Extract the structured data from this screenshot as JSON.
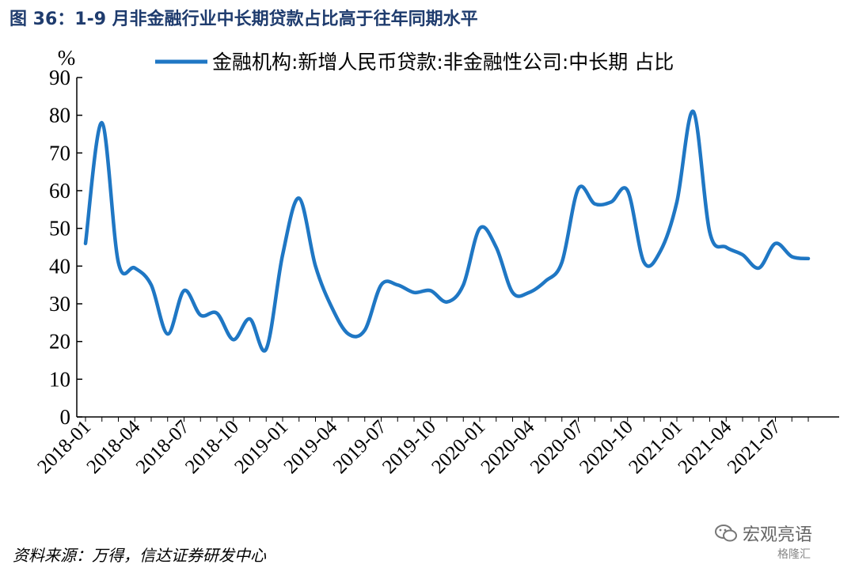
{
  "header": {
    "title": "图 36：1-9 月非金融行业中长期贷款占比高于往年同期水平"
  },
  "footer": {
    "source": "资料来源：万得，信达证券研发中心"
  },
  "watermark": {
    "name": "宏观亮语",
    "brand": "格隆汇",
    "icon": "wechat-icon"
  },
  "colors": {
    "series": "#1f77c4",
    "axis": "#000000",
    "title": "#1f3c6e"
  },
  "chart_data": {
    "type": "line",
    "title": "",
    "ylabel": "%",
    "xlabel": "",
    "ylim": [
      0,
      90
    ],
    "yticks": [
      0,
      10,
      20,
      30,
      40,
      50,
      60,
      70,
      80,
      90
    ],
    "grid": false,
    "legend_position": "top",
    "x_tick_labels": [
      "2018-01",
      "2018-04",
      "2018-07",
      "2018-10",
      "2019-01",
      "2019-04",
      "2019-07",
      "2019-10",
      "2020-01",
      "2020-04",
      "2020-07",
      "2020-10",
      "2021-01",
      "2021-04",
      "2021-07"
    ],
    "x": [
      "2018-01",
      "2018-02",
      "2018-03",
      "2018-04",
      "2018-05",
      "2018-06",
      "2018-07",
      "2018-08",
      "2018-09",
      "2018-10",
      "2018-11",
      "2018-12",
      "2019-01",
      "2019-02",
      "2019-03",
      "2019-04",
      "2019-05",
      "2019-06",
      "2019-07",
      "2019-08",
      "2019-09",
      "2019-10",
      "2019-11",
      "2019-12",
      "2020-01",
      "2020-02",
      "2020-03",
      "2020-04",
      "2020-05",
      "2020-06",
      "2020-07",
      "2020-08",
      "2020-09",
      "2020-10",
      "2020-11",
      "2020-12",
      "2021-01",
      "2021-02",
      "2021-03",
      "2021-04",
      "2021-05",
      "2021-06",
      "2021-07",
      "2021-08",
      "2021-09"
    ],
    "series": [
      {
        "name": "金融机构:新增人民币贷款:非金融性公司:中长期 占比",
        "values": [
          46,
          78,
          41,
          39.5,
          35,
          22,
          33.5,
          27,
          27.5,
          20.5,
          26,
          18,
          43,
          58,
          40,
          29,
          22,
          23,
          35,
          35,
          33,
          33.5,
          30.5,
          35,
          50,
          45,
          33,
          33,
          36,
          41,
          60.5,
          56.5,
          57,
          60,
          41,
          44,
          57,
          81,
          49,
          45,
          43,
          39.5,
          46,
          42.5,
          42
        ]
      }
    ]
  }
}
